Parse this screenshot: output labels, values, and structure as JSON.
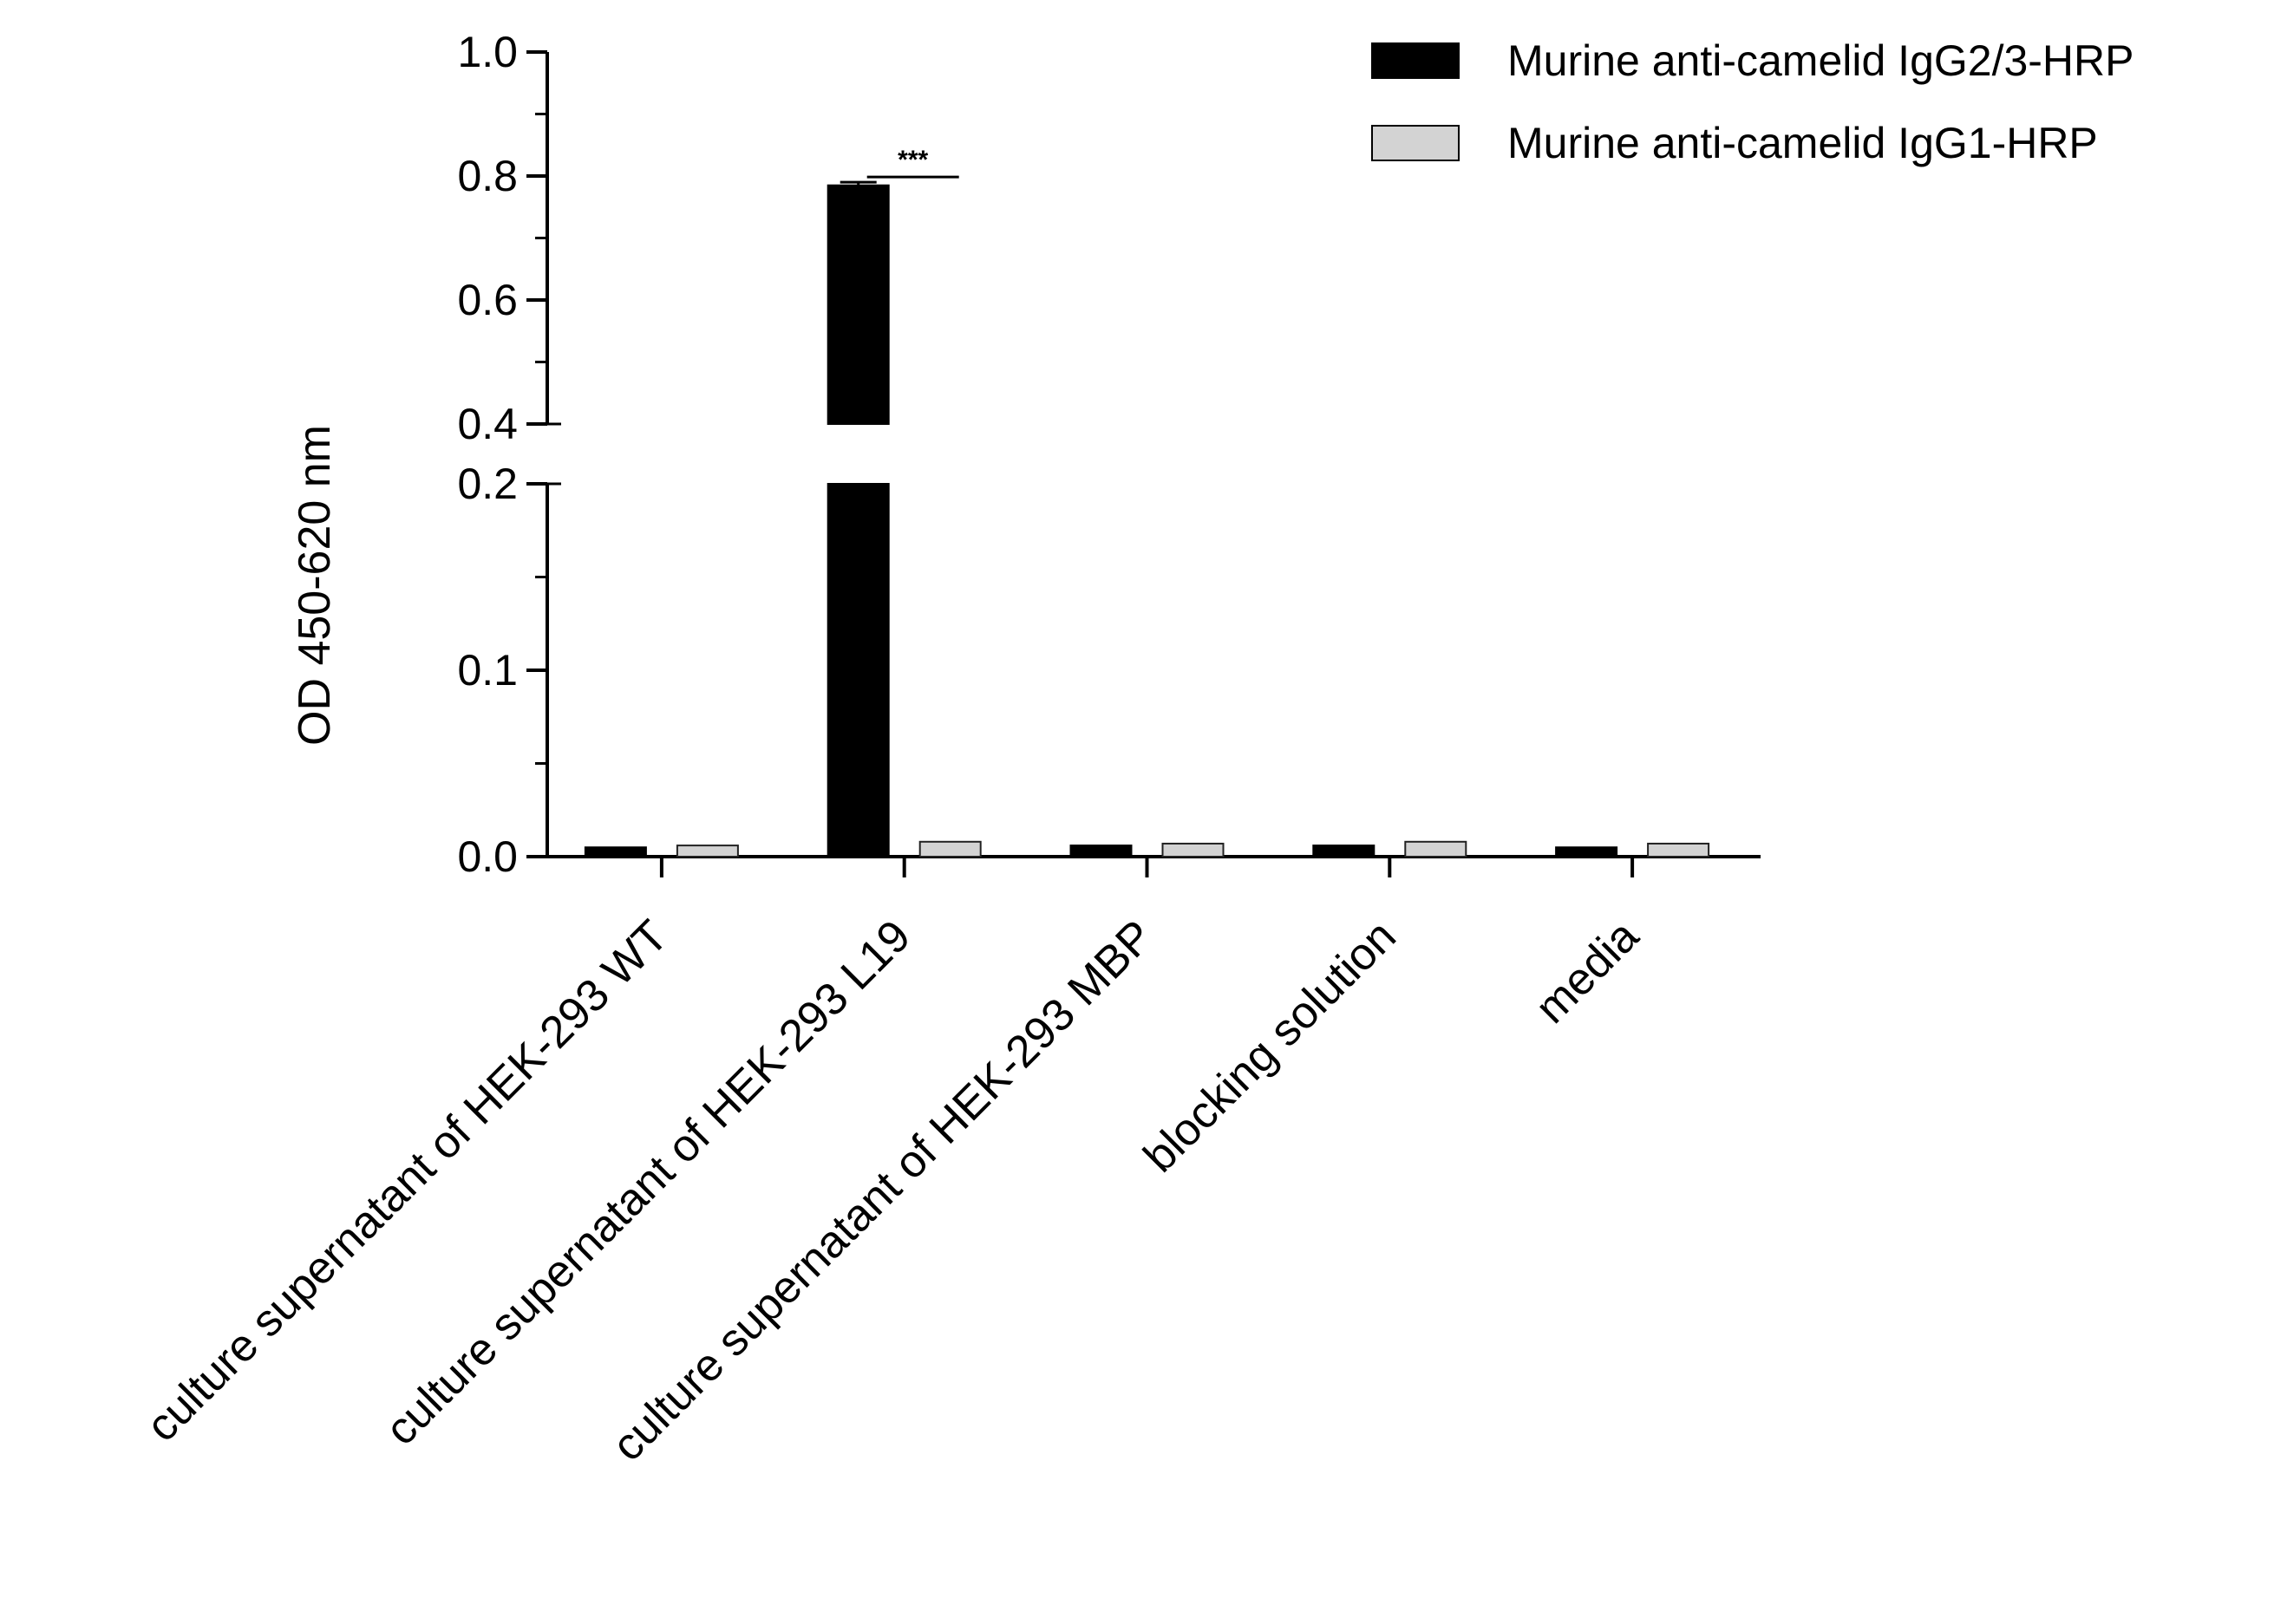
{
  "chart_data": {
    "type": "bar",
    "title": "",
    "xlabel": "",
    "ylabel": "OD 450-620 nm",
    "categories": [
      "culture supernatant of HEK-293 WT",
      "culture supernatant of HEK-293 L19",
      "culture supernatant of HEK-293 MBP",
      "blocking solution",
      "media"
    ],
    "series": [
      {
        "name": "Murine anti-camelid IgG2/3-HRP",
        "color": "#000000",
        "values": [
          0.005,
          0.785,
          0.006,
          0.006,
          0.005
        ],
        "errors": [
          0.0005,
          0.005,
          0.0005,
          0.0005,
          0.0005
        ]
      },
      {
        "name": "Murine anti-camelid IgG1-HRP",
        "color": "#d3d3d3",
        "values": [
          0.006,
          0.008,
          0.007,
          0.008,
          0.007
        ],
        "errors": [
          0.0004,
          0.0004,
          0.0004,
          0.0004,
          0.0004
        ]
      }
    ],
    "y_axis": {
      "broken": true,
      "lower_segment": {
        "range": [
          0,
          0.2
        ],
        "ticks": [
          "0.0",
          "0.1",
          "0.2"
        ],
        "tick_values": [
          0,
          0.1,
          0.2
        ]
      },
      "upper_segment": {
        "range": [
          0.4,
          1.0
        ],
        "ticks": [
          "0.4",
          "0.6",
          "0.8",
          "1.0"
        ],
        "tick_values": [
          0.4,
          0.6,
          0.8,
          1.0
        ]
      }
    },
    "annotations": [
      {
        "text": "***",
        "category": "culture supernatant of HEK-293 L19"
      }
    ],
    "legend_position": "top-right",
    "grid": false
  }
}
